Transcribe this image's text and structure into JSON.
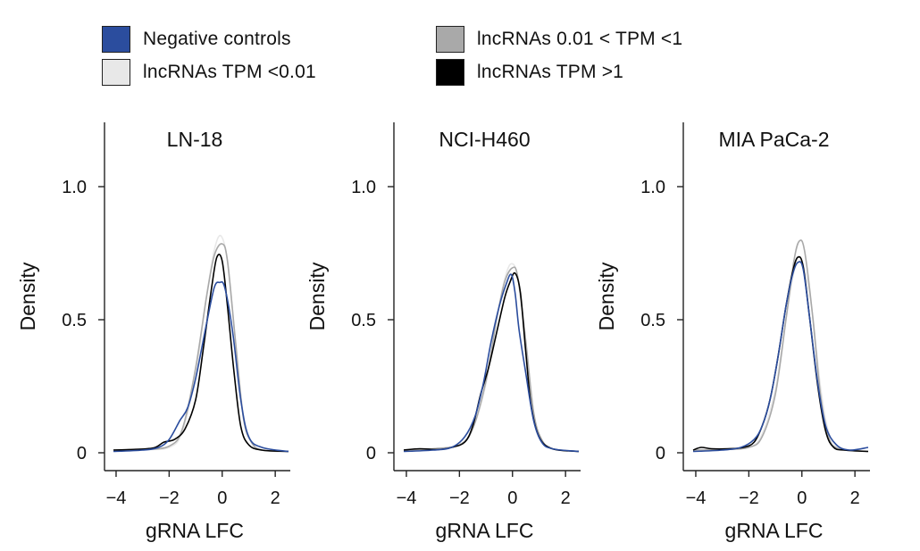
{
  "legend": {
    "items": [
      {
        "label": "Negative controls",
        "color": "#2b4d9e"
      },
      {
        "label": "lncRNAs TPM <0.01",
        "color": "#e8e8e8"
      },
      {
        "label": "lncRNAs 0.01 < TPM <1",
        "color": "#a9a9a9"
      },
      {
        "label": "lncRNAs TPM >1",
        "color": "#000000"
      }
    ]
  },
  "chart_data": [
    {
      "type": "line",
      "title": "LN-18",
      "xlabel": "gRNA LFC",
      "ylabel": "Density",
      "xlim": [
        -4.1,
        2.5
      ],
      "ylim": [
        0,
        1.25
      ],
      "xticks": [
        -4,
        -2,
        0,
        2
      ],
      "xtick_labels": [
        "−4",
        "−2",
        "0",
        "2"
      ],
      "yticks": [
        0,
        0.5,
        1.0
      ],
      "ytick_labels": [
        "0",
        "0.5",
        "1.0"
      ],
      "series": [
        {
          "name": "lncRNAs TPM <0.01",
          "color": "#e8e8e8",
          "points": [
            [
              -4.1,
              0.01
            ],
            [
              -3.0,
              0.012
            ],
            [
              -2.0,
              0.02
            ],
            [
              -1.5,
              0.08
            ],
            [
              -1.0,
              0.3
            ],
            [
              -0.6,
              0.58
            ],
            [
              -0.3,
              0.76
            ],
            [
              -0.05,
              0.815
            ],
            [
              0.2,
              0.72
            ],
            [
              0.5,
              0.42
            ],
            [
              0.8,
              0.14
            ],
            [
              1.1,
              0.04
            ],
            [
              1.5,
              0.01
            ],
            [
              2.5,
              0.005
            ]
          ]
        },
        {
          "name": "lncRNAs 0.01 < TPM <1",
          "color": "#a9a9a9",
          "points": [
            [
              -4.1,
              0.01
            ],
            [
              -3.0,
              0.012
            ],
            [
              -2.0,
              0.025
            ],
            [
              -1.5,
              0.09
            ],
            [
              -1.0,
              0.32
            ],
            [
              -0.6,
              0.58
            ],
            [
              -0.3,
              0.74
            ],
            [
              0.0,
              0.785
            ],
            [
              0.2,
              0.72
            ],
            [
              0.5,
              0.42
            ],
            [
              0.8,
              0.13
            ],
            [
              1.1,
              0.04
            ],
            [
              1.5,
              0.01
            ],
            [
              2.5,
              0.005
            ]
          ]
        },
        {
          "name": "lncRNAs TPM >1",
          "color": "#000000",
          "points": [
            [
              -4.1,
              0.01
            ],
            [
              -3.5,
              0.012
            ],
            [
              -2.6,
              0.018
            ],
            [
              -2.2,
              0.04
            ],
            [
              -1.8,
              0.05
            ],
            [
              -1.4,
              0.09
            ],
            [
              -1.0,
              0.2
            ],
            [
              -0.7,
              0.4
            ],
            [
              -0.4,
              0.62
            ],
            [
              -0.2,
              0.735
            ],
            [
              0.0,
              0.72
            ],
            [
              0.2,
              0.55
            ],
            [
              0.45,
              0.3
            ],
            [
              0.7,
              0.1
            ],
            [
              1.0,
              0.03
            ],
            [
              1.5,
              0.01
            ],
            [
              2.5,
              0.005
            ]
          ]
        },
        {
          "name": "Negative controls",
          "color": "#2b4d9e",
          "points": [
            [
              -4.1,
              0.005
            ],
            [
              -3.0,
              0.01
            ],
            [
              -2.4,
              0.02
            ],
            [
              -2.0,
              0.05
            ],
            [
              -1.6,
              0.12
            ],
            [
              -1.3,
              0.17
            ],
            [
              -1.0,
              0.28
            ],
            [
              -0.6,
              0.48
            ],
            [
              -0.3,
              0.62
            ],
            [
              -0.1,
              0.64
            ],
            [
              0.1,
              0.62
            ],
            [
              0.4,
              0.45
            ],
            [
              0.7,
              0.2
            ],
            [
              1.0,
              0.06
            ],
            [
              1.5,
              0.02
            ],
            [
              2.5,
              0.005
            ]
          ]
        }
      ]
    },
    {
      "type": "line",
      "title": "NCI-H460",
      "xlabel": "gRNA LFC",
      "ylabel": "Density",
      "xlim": [
        -4.1,
        2.5
      ],
      "ylim": [
        0,
        1.25
      ],
      "xticks": [
        -4,
        -2,
        0,
        2
      ],
      "xtick_labels": [
        "−4",
        "−2",
        "0",
        "2"
      ],
      "yticks": [
        0,
        0.5,
        1.0
      ],
      "ytick_labels": [
        "0",
        "0.5",
        "1.0"
      ],
      "series": [
        {
          "name": "lncRNAs TPM <0.01",
          "color": "#e8e8e8",
          "points": [
            [
              -4.1,
              0.01
            ],
            [
              -3.0,
              0.015
            ],
            [
              -2.0,
              0.03
            ],
            [
              -1.5,
              0.09
            ],
            [
              -1.0,
              0.26
            ],
            [
              -0.6,
              0.5
            ],
            [
              -0.3,
              0.65
            ],
            [
              -0.05,
              0.71
            ],
            [
              0.2,
              0.66
            ],
            [
              0.5,
              0.42
            ],
            [
              0.8,
              0.15
            ],
            [
              1.1,
              0.05
            ],
            [
              1.5,
              0.015
            ],
            [
              2.5,
              0.005
            ]
          ]
        },
        {
          "name": "lncRNAs 0.01 < TPM <1",
          "color": "#a9a9a9",
          "points": [
            [
              -4.1,
              0.01
            ],
            [
              -3.0,
              0.015
            ],
            [
              -2.0,
              0.03
            ],
            [
              -1.5,
              0.09
            ],
            [
              -1.0,
              0.27
            ],
            [
              -0.6,
              0.5
            ],
            [
              -0.3,
              0.64
            ],
            [
              0.0,
              0.695
            ],
            [
              0.2,
              0.66
            ],
            [
              0.5,
              0.42
            ],
            [
              0.8,
              0.15
            ],
            [
              1.1,
              0.05
            ],
            [
              1.5,
              0.015
            ],
            [
              2.5,
              0.005
            ]
          ]
        },
        {
          "name": "lncRNAs TPM >1",
          "color": "#000000",
          "points": [
            [
              -4.1,
              0.01
            ],
            [
              -3.5,
              0.015
            ],
            [
              -2.8,
              0.012
            ],
            [
              -2.3,
              0.02
            ],
            [
              -1.8,
              0.04
            ],
            [
              -1.5,
              0.1
            ],
            [
              -1.2,
              0.22
            ],
            [
              -0.9,
              0.32
            ],
            [
              -0.6,
              0.45
            ],
            [
              -0.3,
              0.58
            ],
            [
              -0.1,
              0.64
            ],
            [
              0.1,
              0.675
            ],
            [
              0.3,
              0.6
            ],
            [
              0.5,
              0.38
            ],
            [
              0.7,
              0.18
            ],
            [
              1.0,
              0.06
            ],
            [
              1.5,
              0.015
            ],
            [
              2.5,
              0.005
            ]
          ]
        },
        {
          "name": "Negative controls",
          "color": "#2b4d9e",
          "points": [
            [
              -4.1,
              0.005
            ],
            [
              -3.0,
              0.01
            ],
            [
              -2.3,
              0.02
            ],
            [
              -1.8,
              0.06
            ],
            [
              -1.4,
              0.14
            ],
            [
              -1.1,
              0.26
            ],
            [
              -0.8,
              0.42
            ],
            [
              -0.5,
              0.55
            ],
            [
              -0.25,
              0.63
            ],
            [
              -0.05,
              0.67
            ],
            [
              0.1,
              0.6
            ],
            [
              0.25,
              0.46
            ],
            [
              0.5,
              0.3
            ],
            [
              0.8,
              0.12
            ],
            [
              1.1,
              0.04
            ],
            [
              1.5,
              0.015
            ],
            [
              2.5,
              0.005
            ]
          ]
        }
      ]
    },
    {
      "type": "line",
      "title": "MIA PaCa-2",
      "xlabel": "gRNA LFC",
      "ylabel": "Density",
      "xlim": [
        -4.1,
        2.5
      ],
      "ylim": [
        0,
        1.25
      ],
      "xticks": [
        -4,
        -2,
        0,
        2
      ],
      "xtick_labels": [
        "−4",
        "−2",
        "0",
        "2"
      ],
      "yticks": [
        0,
        0.5,
        1.0
      ],
      "ytick_labels": [
        "0",
        "0.5",
        "1.0"
      ],
      "series": [
        {
          "name": "lncRNAs TPM <0.01",
          "color": "#e8e8e8",
          "points": [
            [
              -4.1,
              0.01
            ],
            [
              -3.0,
              0.012
            ],
            [
              -2.0,
              0.02
            ],
            [
              -1.5,
              0.07
            ],
            [
              -1.0,
              0.24
            ],
            [
              -0.6,
              0.5
            ],
            [
              -0.3,
              0.68
            ],
            [
              -0.1,
              0.72
            ],
            [
              0.1,
              0.69
            ],
            [
              0.4,
              0.52
            ],
            [
              0.7,
              0.25
            ],
            [
              1.0,
              0.08
            ],
            [
              1.4,
              0.02
            ],
            [
              2.5,
              0.005
            ]
          ]
        },
        {
          "name": "lncRNAs 0.01 < TPM <1",
          "color": "#a9a9a9",
          "points": [
            [
              -4.1,
              0.01
            ],
            [
              -3.0,
              0.012
            ],
            [
              -2.0,
              0.02
            ],
            [
              -1.5,
              0.06
            ],
            [
              -1.0,
              0.22
            ],
            [
              -0.6,
              0.5
            ],
            [
              -0.3,
              0.72
            ],
            [
              -0.1,
              0.795
            ],
            [
              0.1,
              0.76
            ],
            [
              0.4,
              0.52
            ],
            [
              0.7,
              0.22
            ],
            [
              1.0,
              0.06
            ],
            [
              1.4,
              0.015
            ],
            [
              2.5,
              0.005
            ]
          ]
        },
        {
          "name": "lncRNAs TPM >1",
          "color": "#000000",
          "points": [
            [
              -4.1,
              0.01
            ],
            [
              -3.8,
              0.02
            ],
            [
              -3.4,
              0.015
            ],
            [
              -2.8,
              0.015
            ],
            [
              -2.2,
              0.02
            ],
            [
              -1.8,
              0.04
            ],
            [
              -1.5,
              0.1
            ],
            [
              -1.2,
              0.2
            ],
            [
              -0.9,
              0.36
            ],
            [
              -0.6,
              0.55
            ],
            [
              -0.35,
              0.68
            ],
            [
              -0.15,
              0.735
            ],
            [
              0.05,
              0.7
            ],
            [
              0.3,
              0.5
            ],
            [
              0.6,
              0.25
            ],
            [
              0.9,
              0.08
            ],
            [
              1.2,
              0.02
            ],
            [
              1.6,
              0.01
            ],
            [
              2.5,
              0.005
            ]
          ]
        },
        {
          "name": "Negative controls",
          "color": "#2b4d9e",
          "points": [
            [
              -4.1,
              0.005
            ],
            [
              -3.0,
              0.01
            ],
            [
              -2.3,
              0.02
            ],
            [
              -1.8,
              0.05
            ],
            [
              -1.5,
              0.1
            ],
            [
              -1.2,
              0.2
            ],
            [
              -0.9,
              0.36
            ],
            [
              -0.6,
              0.55
            ],
            [
              -0.35,
              0.67
            ],
            [
              -0.15,
              0.715
            ],
            [
              0.05,
              0.69
            ],
            [
              0.3,
              0.5
            ],
            [
              0.6,
              0.26
            ],
            [
              0.9,
              0.1
            ],
            [
              1.3,
              0.03
            ],
            [
              1.8,
              0.01
            ],
            [
              2.5,
              0.02
            ]
          ]
        }
      ]
    }
  ]
}
